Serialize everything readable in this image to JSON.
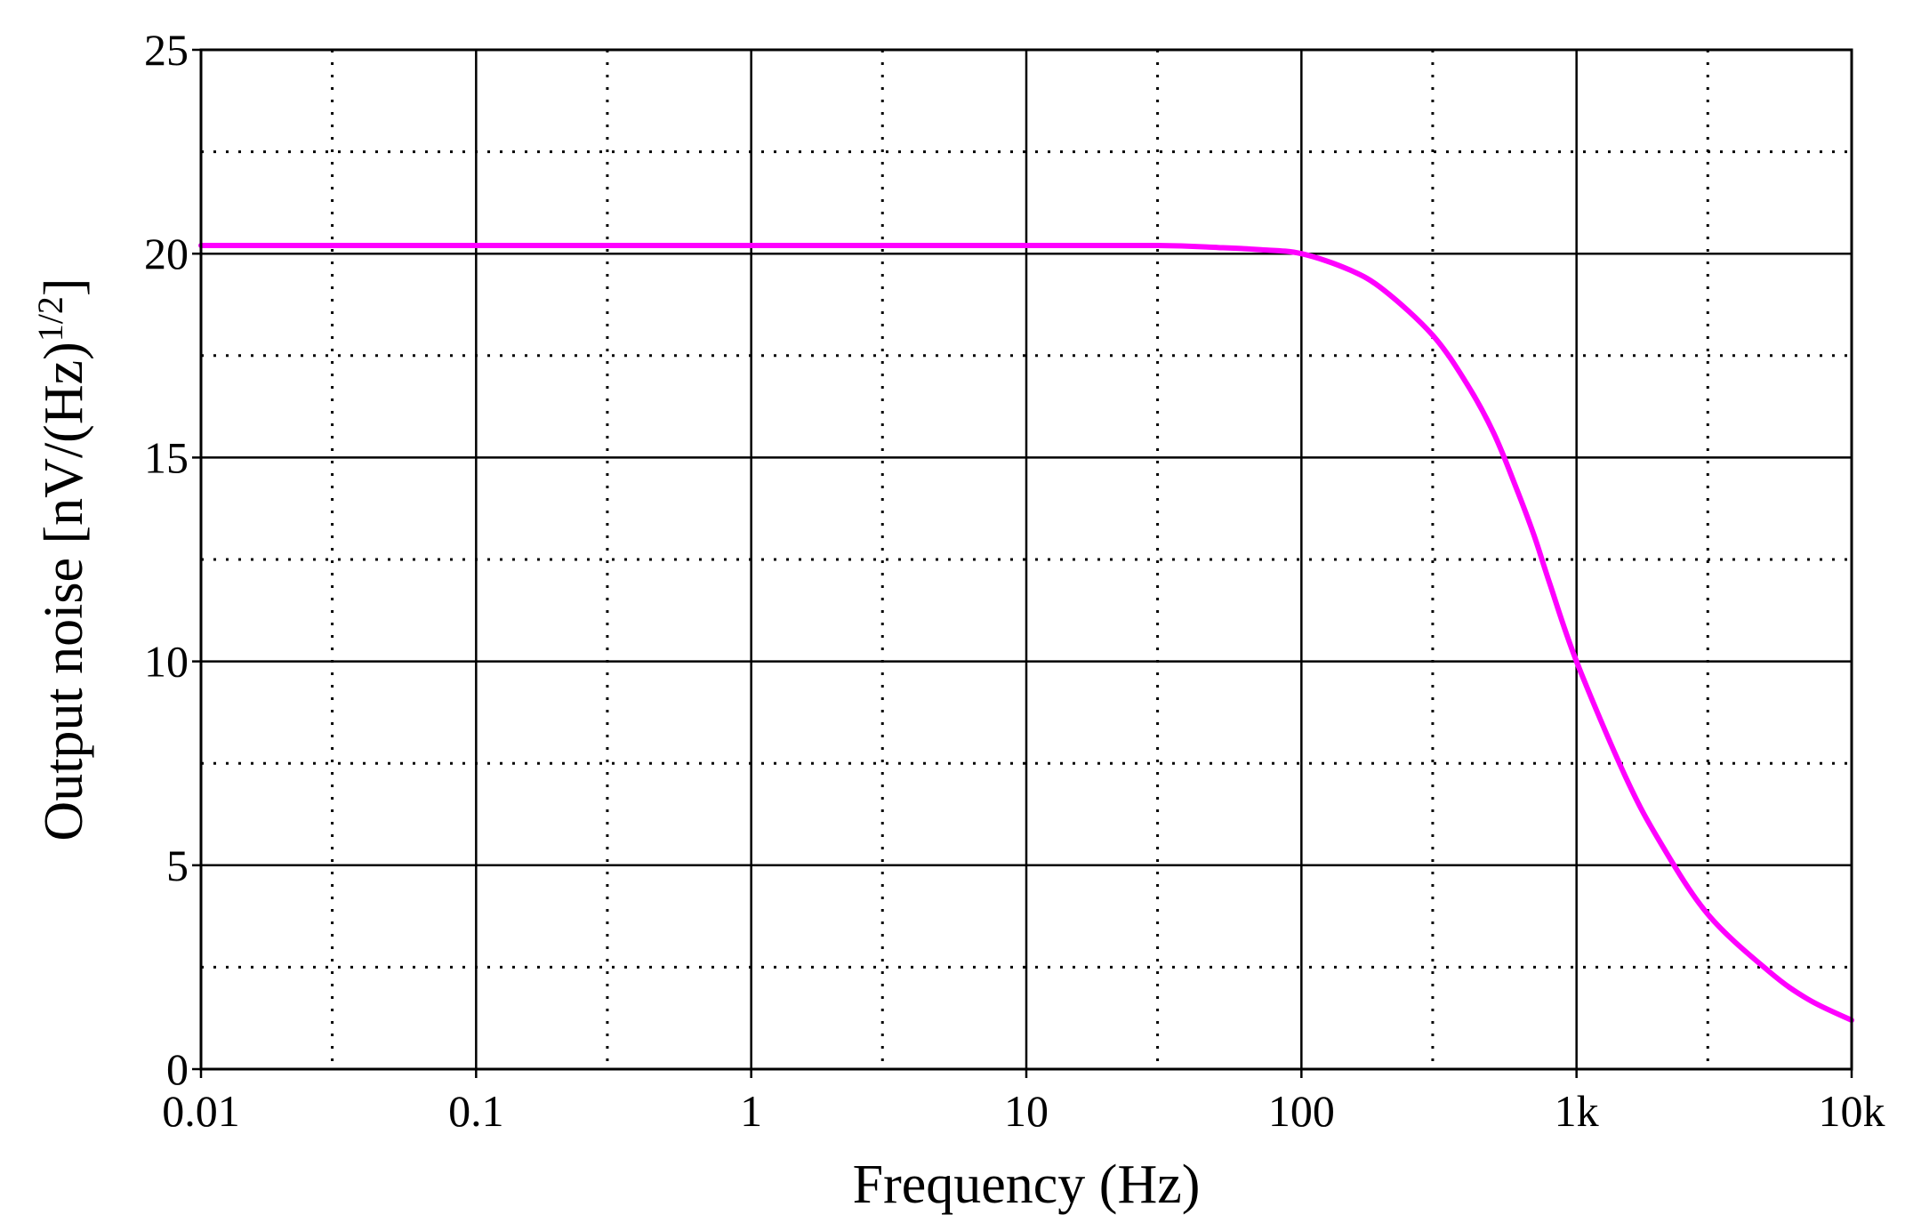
{
  "chart_data": {
    "type": "line",
    "title": "",
    "xlabel": "Frequency (Hz)",
    "ylabel": "Output noise [nV/(Hz)",
    "ylabel_superscript": "1/2",
    "ylabel_suffix": "]",
    "x_scale": "log",
    "xlim": [
      0.01,
      10000
    ],
    "ylim": [
      0,
      25
    ],
    "x_ticks": [
      {
        "value": 0.01,
        "label": "0.01"
      },
      {
        "value": 0.1,
        "label": "0.1"
      },
      {
        "value": 1,
        "label": "1"
      },
      {
        "value": 10,
        "label": "10"
      },
      {
        "value": 100,
        "label": "100"
      },
      {
        "value": 1000,
        "label": "1k"
      },
      {
        "value": 10000,
        "label": "10k"
      }
    ],
    "x_minor_ticks": [
      0.03,
      0.3,
      3,
      30,
      300,
      3000
    ],
    "y_ticks": [
      {
        "value": 0,
        "label": "0"
      },
      {
        "value": 5,
        "label": "5"
      },
      {
        "value": 10,
        "label": "10"
      },
      {
        "value": 15,
        "label": "15"
      },
      {
        "value": 20,
        "label": "20"
      },
      {
        "value": 25,
        "label": "25"
      }
    ],
    "y_minor_ticks": [
      2.5,
      7.5,
      12.5,
      17.5,
      22.5
    ],
    "grid": true,
    "colors": {
      "series": "#ff00ff",
      "major_grid": "#000000",
      "minor_grid": "#000000",
      "axes": "#000000"
    },
    "series": [
      {
        "x": [
          0.01,
          0.1,
          1,
          10,
          30,
          50,
          70,
          100,
          150,
          200,
          300,
          400,
          500,
          600,
          700,
          800,
          1000,
          1500,
          2000,
          3000,
          5000,
          7000,
          10000
        ],
        "y": [
          20.2,
          20.2,
          20.2,
          20.2,
          20.2,
          20.15,
          20.1,
          20.0,
          19.6,
          19.1,
          18.0,
          16.8,
          15.6,
          14.3,
          13.1,
          11.9,
          10.0,
          7.2,
          5.6,
          3.8,
          2.4,
          1.7,
          1.2
        ]
      }
    ]
  }
}
